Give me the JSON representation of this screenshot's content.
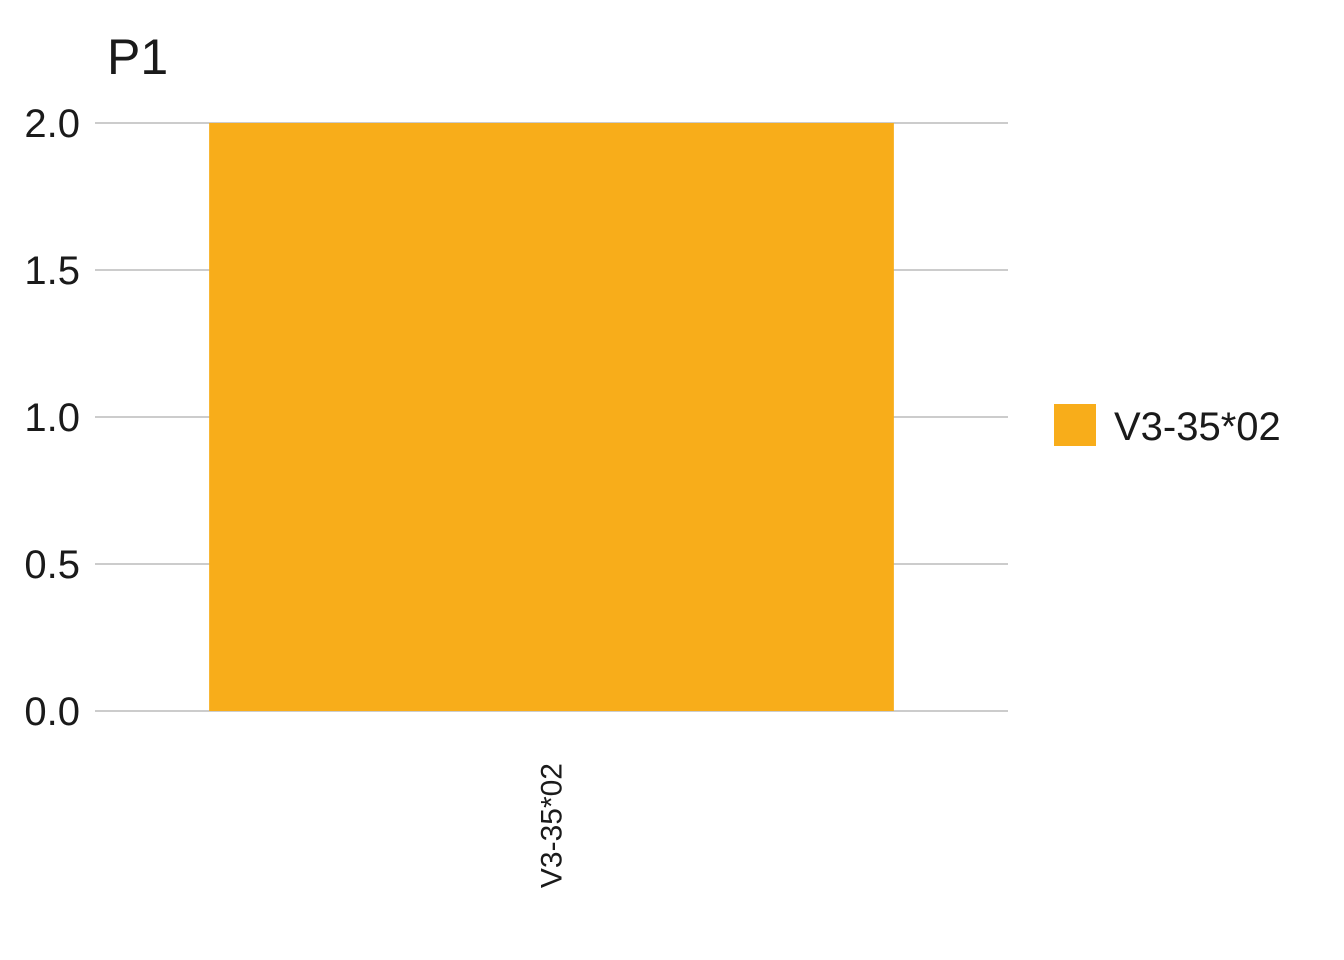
{
  "chart_data": {
    "type": "bar",
    "title": "P1",
    "xlabel": "",
    "ylabel": "",
    "categories": [
      "V3-35*02"
    ],
    "series": [
      {
        "name": "V3-35*02",
        "values": [
          2.0
        ],
        "color": "#F8AD1A"
      }
    ],
    "ylim": [
      0,
      2.0
    ],
    "yticks": [
      "0.0",
      "0.5",
      "1.0",
      "1.5",
      "2.0"
    ],
    "grid": true,
    "legend_position": "right"
  }
}
